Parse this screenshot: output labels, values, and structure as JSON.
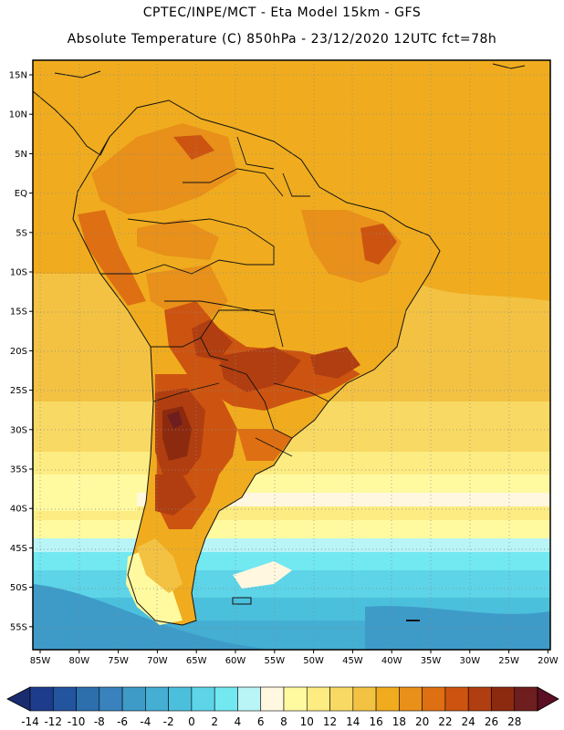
{
  "title": {
    "line1": "CPTEC/INPE/MCT -  Eta Model 15km - GFS",
    "line2": "Absolute Temperature (C) 850hPa - 23/12/2020 12UTC fct=78h"
  },
  "map": {
    "lon_labels": [
      "85W",
      "80W",
      "75W",
      "70W",
      "65W",
      "60W",
      "55W",
      "50W",
      "45W",
      "40W",
      "35W",
      "30W",
      "25W",
      "20W"
    ],
    "lat_labels": [
      "15N",
      "10N",
      "5N",
      "EQ",
      "5S",
      "10S",
      "15S",
      "20S",
      "25S",
      "30S",
      "35S",
      "40S",
      "45S",
      "50S",
      "55S"
    ],
    "lon_range": [
      -85,
      -20
    ],
    "lat_range": [
      -57,
      17
    ]
  },
  "legend": {
    "labels": [
      "-14",
      "-12",
      "-10",
      "-8",
      "-6",
      "-4",
      "-2",
      "0",
      "2",
      "4",
      "6",
      "8",
      "10",
      "12",
      "14",
      "16",
      "18",
      "20",
      "22",
      "24",
      "26",
      "28"
    ],
    "colors": [
      "#1e3c8c",
      "#23549e",
      "#2d6ead",
      "#3982bd",
      "#3e9bc8",
      "#44aed3",
      "#4bc0dc",
      "#5dd4e7",
      "#72e8f1",
      "#b9f4f7",
      "#fff7df",
      "#fffaa0",
      "#fcec82",
      "#f8d964",
      "#f3c243",
      "#f0ac1e",
      "#e8901a",
      "#de6f12",
      "#cc5410",
      "#b13e10",
      "#8c2a10",
      "#6e1e1e"
    ],
    "left_arrow_color": "#1a2c70",
    "right_arrow_color": "#5a0f22"
  }
}
